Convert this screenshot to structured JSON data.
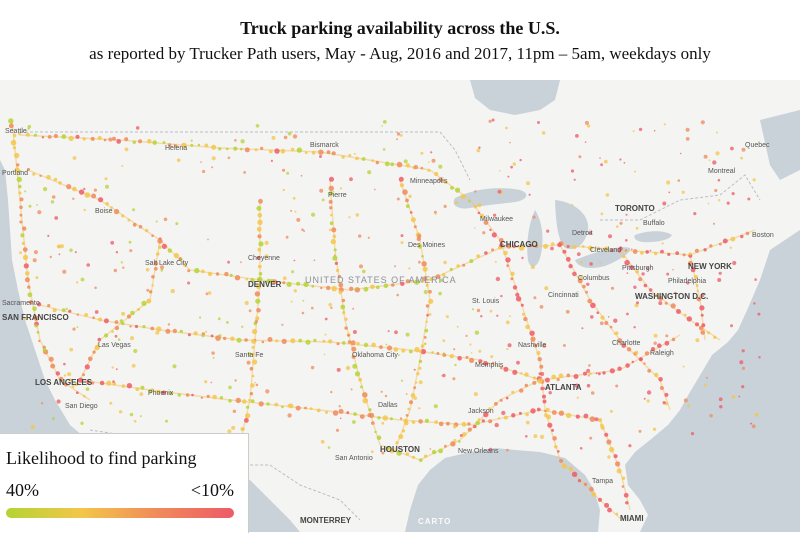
{
  "header": {
    "title": "Truck parking availability across the U.S.",
    "subtitle": "as reported by Trucker Path users, May - Aug, 2016 and 2017, 11pm – 5am, weekdays only"
  },
  "map": {
    "country_label": "UNITED STATES OF AMERICA",
    "basemap_credit": "CARTO",
    "colors": {
      "land": "#f5f5f3",
      "water": "#c8d0d8",
      "high_availability": "#8bc34a",
      "medium": "#f0c040",
      "low_availability": "#ef5350"
    },
    "cities": [
      {
        "name": "Seattle",
        "major": false
      },
      {
        "name": "Portland",
        "major": false
      },
      {
        "name": "Helena",
        "major": false
      },
      {
        "name": "Bismarck",
        "major": false
      },
      {
        "name": "Minneapolis",
        "major": false
      },
      {
        "name": "Boise",
        "major": false
      },
      {
        "name": "Pierre",
        "major": false
      },
      {
        "name": "Salt Lake City",
        "major": false
      },
      {
        "name": "Cheyenne",
        "major": false
      },
      {
        "name": "DENVER",
        "major": true
      },
      {
        "name": "Sacramento",
        "major": false
      },
      {
        "name": "SAN FRANCISCO",
        "major": true
      },
      {
        "name": "Las Vegas",
        "major": false
      },
      {
        "name": "LOS ANGELES",
        "major": true
      },
      {
        "name": "San Diego",
        "major": false
      },
      {
        "name": "Phoenix",
        "major": false
      },
      {
        "name": "Santa Fe",
        "major": false
      },
      {
        "name": "Oklahoma City",
        "major": false
      },
      {
        "name": "Dallas",
        "major": false
      },
      {
        "name": "HOUSTON",
        "major": true
      },
      {
        "name": "San Antonio",
        "major": false
      },
      {
        "name": "MONTERREY",
        "major": true
      },
      {
        "name": "Des Moines",
        "major": false
      },
      {
        "name": "CHICAGO",
        "major": true
      },
      {
        "name": "Milwaukee",
        "major": false
      },
      {
        "name": "Detroit",
        "major": false
      },
      {
        "name": "TORONTO",
        "major": true
      },
      {
        "name": "Montreal",
        "major": false
      },
      {
        "name": "Quebec",
        "major": false
      },
      {
        "name": "Boston",
        "major": false
      },
      {
        "name": "NEW YORK",
        "major": true
      },
      {
        "name": "Philadelphia",
        "major": false
      },
      {
        "name": "WASHINGTON D.C.",
        "major": true
      },
      {
        "name": "Pittsburgh",
        "major": false
      },
      {
        "name": "Cleveland",
        "major": false
      },
      {
        "name": "Columbus",
        "major": false
      },
      {
        "name": "Cincinnati",
        "major": false
      },
      {
        "name": "St. Louis",
        "major": false
      },
      {
        "name": "Memphis",
        "major": false
      },
      {
        "name": "Nashville",
        "major": false
      },
      {
        "name": "Charlotte",
        "major": false
      },
      {
        "name": "Raleigh",
        "major": false
      },
      {
        "name": "ATLANTA",
        "major": true
      },
      {
        "name": "Jackson",
        "major": false
      },
      {
        "name": "New Orleans",
        "major": false
      },
      {
        "name": "Tampa",
        "major": false
      },
      {
        "name": "MIAMI",
        "major": true
      },
      {
        "name": "Buffalo",
        "major": false
      }
    ]
  },
  "legend": {
    "title": "Likelihood to find parking",
    "low_label": "40%",
    "high_label": "<10%",
    "gradient": [
      "#b5d334",
      "#f3c64a",
      "#f08a5a",
      "#ee5a67"
    ]
  }
}
